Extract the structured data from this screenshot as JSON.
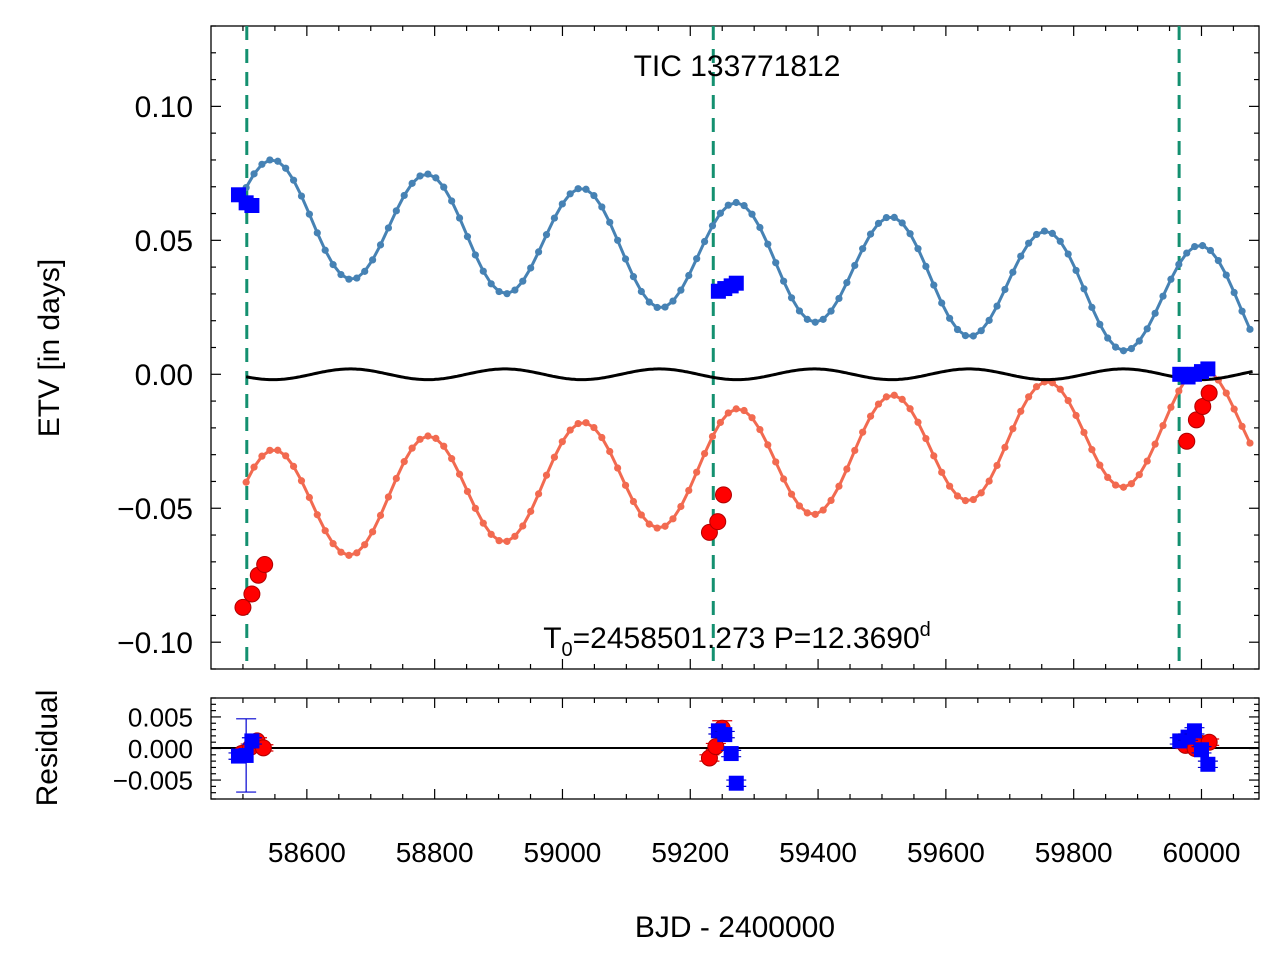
{
  "chart_data": [
    {
      "type": "line",
      "title": "TIC 133771812",
      "annotation": {
        "base": "T",
        "sub": "0",
        "mid": "=2458501.273 P=12.3690",
        "sup": "d"
      },
      "ylabel": "ETV [in days]",
      "xlim": [
        58450,
        60090
      ],
      "ylim": [
        -0.11,
        0.13
      ],
      "y_ticks": [
        -0.1,
        -0.05,
        0.0,
        0.05,
        0.1
      ],
      "y_tick_labels": [
        "−0.10",
        "−0.05",
        "0.00",
        "0.05",
        "0.10"
      ],
      "vlines": [
        58506,
        59236,
        59965
      ],
      "colors": {
        "primary_model": "#4682b4",
        "secondary_model": "#f26a50",
        "primary_obs": "#0000ff",
        "secondary_obs": "#ff0000",
        "zero_model": "#000000",
        "vline": "#149070"
      },
      "series": [
        {
          "name": "primary model",
          "kind": "sinusoid-fit",
          "x_start": 58505,
          "x_end": 60080,
          "step": 12.369,
          "a": 0.06,
          "b": -2.2e-05,
          "amp": 0.021,
          "period": 242,
          "phase_x": 58547
        },
        {
          "name": "secondary model",
          "kind": "sinusoid-fit",
          "x_start": 58505,
          "x_end": 60080,
          "step": 12.369,
          "a": -0.05,
          "b": 2.1e-05,
          "amp": 0.021,
          "period": 242,
          "phase_x": 58547
        },
        {
          "name": "zero model",
          "kind": "sinusoid",
          "x_start": 58505,
          "x_end": 60080,
          "amp": 0.002,
          "period": 242,
          "phase_x": 58547
        },
        {
          "name": "primary observations",
          "marker": "square",
          "x": [
            58493,
            58505,
            58514,
            59244,
            59254,
            59264,
            59272,
            59966,
            59979,
            59989,
            60000,
            60010
          ],
          "y": [
            0.067,
            0.064,
            0.063,
            0.031,
            0.032,
            0.033,
            0.034,
            0.0,
            -0.001,
            0.0,
            0.001,
            0.002
          ]
        },
        {
          "name": "secondary observations",
          "marker": "circle",
          "x": [
            58500,
            58514,
            58524,
            58534,
            59230,
            59243,
            59252,
            59977,
            59992,
            60002,
            60012
          ],
          "y": [
            -0.087,
            -0.082,
            -0.075,
            -0.071,
            -0.059,
            -0.055,
            -0.045,
            -0.025,
            -0.017,
            -0.012,
            -0.007
          ]
        }
      ]
    },
    {
      "type": "scatter",
      "ylabel": "Residual",
      "xlabel": "BJD - 2400000",
      "xlim": [
        58450,
        60090
      ],
      "ylim": [
        -0.008,
        0.008
      ],
      "y_ticks": [
        -0.005,
        0.0,
        0.005
      ],
      "y_tick_labels": [
        "−0.005",
        "0.000",
        "0.005"
      ],
      "x_ticks": [
        58600,
        58800,
        59000,
        59200,
        59400,
        59600,
        59800,
        60000
      ],
      "x_tick_labels": [
        "58600",
        "58800",
        "59000",
        "59200",
        "59400",
        "59600",
        "59800",
        "60000"
      ],
      "series": [
        {
          "name": "primary residuals",
          "marker": "square",
          "x": [
            58493,
            58505,
            58514,
            59244,
            59254,
            59264,
            59272,
            59966,
            59979,
            59989,
            60000,
            60010
          ],
          "y": [
            -0.0012,
            -0.0011,
            0.0012,
            0.0028,
            0.0022,
            -0.0008,
            -0.0055,
            0.0012,
            0.0018,
            0.0028,
            -0.0002,
            -0.0025
          ],
          "err": [
            0.0005,
            0.0058,
            0.0005,
            0.0005,
            0.0005,
            0.0005,
            0.0005,
            0.0005,
            0.0005,
            0.0005,
            0.0005,
            0.0005
          ]
        },
        {
          "name": "secondary residuals",
          "marker": "circle",
          "x": [
            58498,
            58512,
            58522,
            58532,
            59230,
            59240,
            59250,
            59975,
            59990,
            60000,
            60012
          ],
          "y": [
            -0.0008,
            0.0002,
            0.0012,
            0.0001,
            -0.0015,
            0.0003,
            0.0032,
            0.0005,
            0.0,
            0.0008,
            0.001
          ],
          "err": [
            0.0005,
            0.0005,
            0.0005,
            0.0005,
            0.0005,
            0.0005,
            0.0012,
            0.0005,
            0.0005,
            0.0005,
            0.0005
          ]
        }
      ]
    }
  ]
}
